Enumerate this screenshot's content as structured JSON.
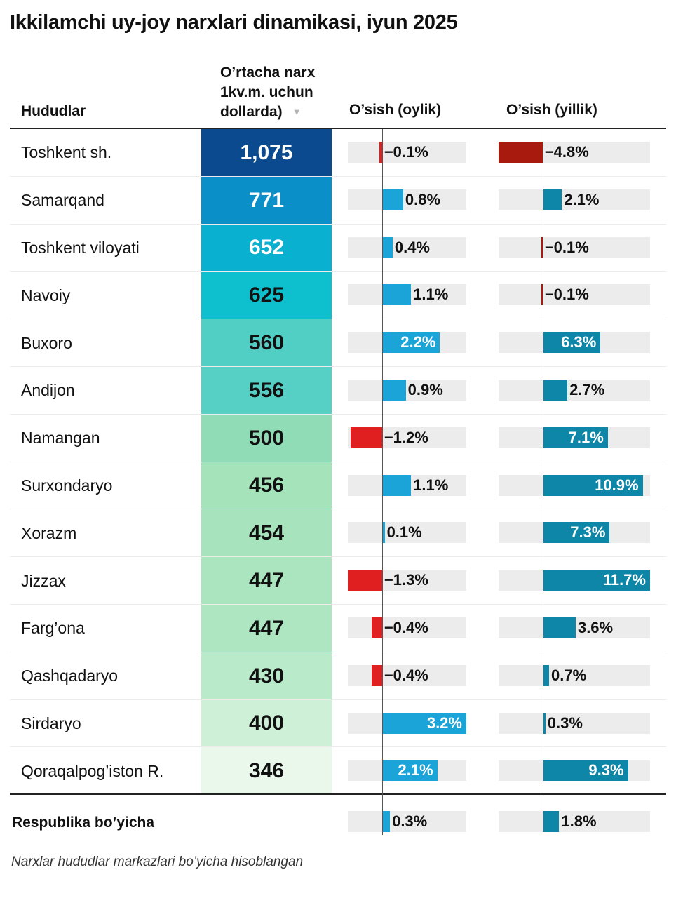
{
  "title": "Ikkilamchi uy-joy narxlari dinamikasi, iyun 2025",
  "header": {
    "region": "Hududlar",
    "price_lines": [
      "O’rtacha narx",
      "1kv.m. uchun",
      "dollarda)"
    ],
    "sort_icon": "triangle-down-icon",
    "monthly": "O’sish (oylik)",
    "yearly": "O’sish (yillik)"
  },
  "colors": {
    "positive_monthly": "#1aa4d8",
    "positive_yearly": "#0e86a8",
    "negative_monthly": "#e02020",
    "negative_yearly": "#a81a0e",
    "track": "#ececec"
  },
  "chart_data": {
    "type": "table",
    "columns": [
      "Hududlar",
      "O’rtacha narx 1kv.m. uchun dollarda)",
      "O’sish (oylik)",
      "O’sish (yillik)"
    ],
    "monthly_range": [
      -1.3,
      3.2
    ],
    "yearly_range": [
      -4.8,
      11.7
    ],
    "rows": [
      {
        "region": "Toshkent sh.",
        "price": 1075,
        "price_label": "1,075",
        "price_color": "#0b4a8f",
        "price_text_color": "#ffffff",
        "monthly": -0.1,
        "monthly_label": "−0.1%",
        "yearly": -4.8,
        "yearly_label": "−4.8%"
      },
      {
        "region": "Samarqand",
        "price": 771,
        "price_label": "771",
        "price_color": "#0b8fc9",
        "price_text_color": "#ffffff",
        "monthly": 0.8,
        "monthly_label": "0.8%",
        "yearly": 2.1,
        "yearly_label": "2.1%"
      },
      {
        "region": "Toshkent viloyati",
        "price": 652,
        "price_label": "652",
        "price_color": "#09b0cf",
        "price_text_color": "#ffffff",
        "monthly": 0.4,
        "monthly_label": "0.4%",
        "yearly": -0.1,
        "yearly_label": "−0.1%"
      },
      {
        "region": "Navoiy",
        "price": 625,
        "price_label": "625",
        "price_color": "#0ec0cd",
        "price_text_color": "#111111",
        "monthly": 1.1,
        "monthly_label": "1.1%",
        "yearly": -0.1,
        "yearly_label": "−0.1%"
      },
      {
        "region": "Buxoro",
        "price": 560,
        "price_label": "560",
        "price_color": "#52cfc4",
        "price_text_color": "#111111",
        "monthly": 2.2,
        "monthly_label": "2.2%",
        "yearly": 6.3,
        "yearly_label": "6.3%"
      },
      {
        "region": "Andijon",
        "price": 556,
        "price_label": "556",
        "price_color": "#56d0c4",
        "price_text_color": "#111111",
        "monthly": 0.9,
        "monthly_label": "0.9%",
        "yearly": 2.7,
        "yearly_label": "2.7%"
      },
      {
        "region": "Namangan",
        "price": 500,
        "price_label": "500",
        "price_color": "#8fdcb6",
        "price_text_color": "#111111",
        "monthly": -1.2,
        "monthly_label": "−1.2%",
        "yearly": 7.1,
        "yearly_label": "7.1%"
      },
      {
        "region": "Surxondaryo",
        "price": 456,
        "price_label": "456",
        "price_color": "#a5e3bb",
        "price_text_color": "#111111",
        "monthly": 1.1,
        "monthly_label": "1.1%",
        "yearly": 10.9,
        "yearly_label": "10.9%"
      },
      {
        "region": "Xorazm",
        "price": 454,
        "price_label": "454",
        "price_color": "#a7e4bd",
        "price_text_color": "#111111",
        "monthly": 0.1,
        "monthly_label": "0.1%",
        "yearly": 7.3,
        "yearly_label": "7.3%"
      },
      {
        "region": "Jizzax",
        "price": 447,
        "price_label": "447",
        "price_color": "#aae5c0",
        "price_text_color": "#111111",
        "monthly": -1.3,
        "monthly_label": "−1.3%",
        "yearly": 11.7,
        "yearly_label": "11.7%"
      },
      {
        "region": "Farg’ona",
        "price": 447,
        "price_label": "447",
        "price_color": "#aee6c2",
        "price_text_color": "#111111",
        "monthly": -0.4,
        "monthly_label": "−0.4%",
        "yearly": 3.6,
        "yearly_label": "3.6%"
      },
      {
        "region": "Qashqadaryo",
        "price": 430,
        "price_label": "430",
        "price_color": "#b9eac9",
        "price_text_color": "#111111",
        "monthly": -0.4,
        "monthly_label": "−0.4%",
        "yearly": 0.7,
        "yearly_label": "0.7%"
      },
      {
        "region": "Sirdaryo",
        "price": 400,
        "price_label": "400",
        "price_color": "#cdf0d7",
        "price_text_color": "#111111",
        "monthly": 3.2,
        "monthly_label": "3.2%",
        "yearly": 0.3,
        "yearly_label": "0.3%"
      },
      {
        "region": "Qoraqalpog’iston R.",
        "price": 346,
        "price_label": "346",
        "price_color": "#eaf8ec",
        "price_text_color": "#111111",
        "monthly": 2.1,
        "monthly_label": "2.1%",
        "yearly": 9.3,
        "yearly_label": "9.3%"
      }
    ],
    "total": {
      "region": "Respublika bo’yicha",
      "monthly": 0.3,
      "monthly_label": "0.3%",
      "yearly": 1.8,
      "yearly_label": "1.8%"
    }
  },
  "footnote": "Narxlar hududlar markazlari bo’yicha hisoblangan"
}
